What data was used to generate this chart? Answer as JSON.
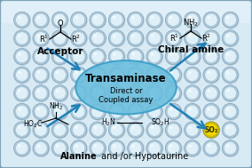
{
  "bg_color": "#b8ccd8",
  "plate_color": "#ccdde8",
  "well_outer_color": "#9ab8cc",
  "well_inner_color": "#e8f2f8",
  "well_edge_color": "#7a9db5",
  "ellipse_color": "#6bbedd",
  "ellipse_edge": "#3a9ec8",
  "arrow_color": "#2080b8",
  "title_text": "Transaminase",
  "subtitle1": "Direct or",
  "subtitle2": "Coupled assay",
  "top_left_label": "Acceptor",
  "top_right_label": "Chiral amine",
  "bottom_label_bold": "Alanine",
  "bottom_label_rest": " and /or Hypotaurine",
  "so2_color": "#f0d800",
  "so2_text": "SO₂",
  "num_cols": 12,
  "num_rows": 8,
  "plate_border_color": "#8ab0c8"
}
